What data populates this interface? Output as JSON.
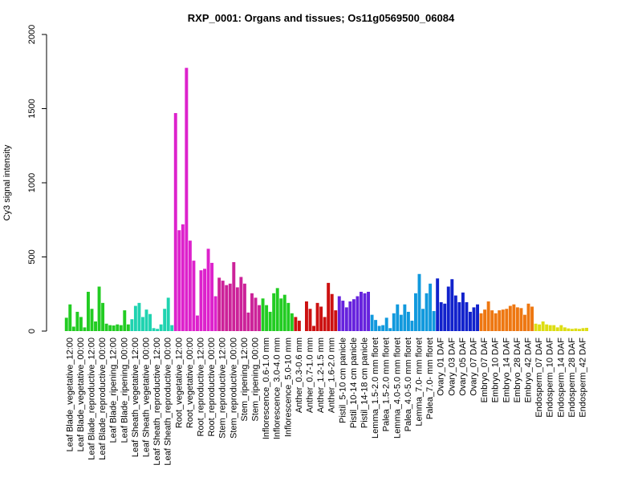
{
  "chart_data": {
    "type": "bar",
    "title": "RXP_0001: Organs and tissues; Os11g0569500_06084",
    "xlabel": "",
    "ylabel": "Cy3 signal intensity",
    "ylim": [
      0,
      2000
    ],
    "yticks": [
      0,
      500,
      1000,
      1500,
      2000
    ],
    "grid": false,
    "legend": "none",
    "groups": [
      {
        "label": "Leaf Blade_vegetative_12:00",
        "color": "#22cc22",
        "values": [
          90,
          180,
          30
        ]
      },
      {
        "label": "Leaf Blade_vegetative_00:00",
        "color": "#22cc22",
        "values": [
          130,
          95,
          25
        ]
      },
      {
        "label": "Leaf Blade_reproductive_12:00",
        "color": "#22cc22",
        "values": [
          265,
          150,
          65
        ]
      },
      {
        "label": "Leaf Blade_reproductive_00:00",
        "color": "#22cc22",
        "values": [
          300,
          190,
          50
        ]
      },
      {
        "label": "Leaf Blade_ripening_12:00",
        "color": "#22cc22",
        "values": [
          40,
          38,
          45
        ]
      },
      {
        "label": "Leaf Blade_ripening_00:00",
        "color": "#22cc22",
        "values": [
          40,
          140,
          45
        ]
      },
      {
        "label": "Leaf Sheath_vegetative_12:00",
        "color": "#1fd3b0",
        "values": [
          80,
          170,
          190
        ]
      },
      {
        "label": "Leaf Sheath_vegetative_00:00",
        "color": "#1fd3b0",
        "values": [
          95,
          145,
          115
        ]
      },
      {
        "label": "Leaf Sheath_reproductive_12:00",
        "color": "#1fd3b0",
        "values": [
          20,
          15,
          45
        ]
      },
      {
        "label": "Leaf Sheath_reproductive_00:00",
        "color": "#1fd3b0",
        "values": [
          150,
          225,
          40
        ]
      },
      {
        "label": "Root_vegetative_12:00",
        "color": "#dd22cc",
        "values": [
          1470,
          680,
          720
        ]
      },
      {
        "label": "Root_vegetative_00:00",
        "color": "#dd22cc",
        "values": [
          1775,
          610,
          475
        ]
      },
      {
        "label": "Root_reproductive_12:00",
        "color": "#dd22cc",
        "values": [
          105,
          410,
          420
        ]
      },
      {
        "label": "Root_reproductive_00:00",
        "color": "#dd22cc",
        "values": [
          555,
          460,
          235
        ]
      },
      {
        "label": "Stem_reproductive_12:00",
        "color": "#cc2299",
        "values": [
          360,
          340,
          310
        ]
      },
      {
        "label": "Stem_reproductive_00:00",
        "color": "#cc2299",
        "values": [
          320,
          465,
          295
        ]
      },
      {
        "label": "Stem_ripening_12:00",
        "color": "#cc2299",
        "values": [
          365,
          320,
          125
        ]
      },
      {
        "label": "Stem_ripening_00:00",
        "color": "#cc2299",
        "values": [
          255,
          225,
          175
        ]
      },
      {
        "label": "Inflorescence_0.6-1.0 mm",
        "color": "#22cc22",
        "values": [
          220,
          175,
          130
        ]
      },
      {
        "label": "Inflorescence_3.0-4.0 mm",
        "color": "#22cc22",
        "values": [
          255,
          290,
          220
        ]
      },
      {
        "label": "Inflorescence_5.0-10 mm",
        "color": "#22cc22",
        "values": [
          245,
          190,
          120
        ]
      },
      {
        "label": "Anther_0.3-0.6 mm",
        "color": "#cc1111",
        "values": [
          95,
          70
        ]
      },
      {
        "label": "Anther_0.7-1.0 mm",
        "color": "#cc1111",
        "values": [
          200,
          150,
          35
        ]
      },
      {
        "label": "Anther_1.2-1.5 mm",
        "color": "#cc1111",
        "values": [
          190,
          165,
          95
        ]
      },
      {
        "label": "Anther_1.6-2.0 mm",
        "color": "#cc1111",
        "values": [
          325,
          250,
          140
        ]
      },
      {
        "label": "Pistil_5-10 cm panicle",
        "color": "#6622dd",
        "values": [
          235,
          205,
          160
        ]
      },
      {
        "label": "Pistil_10-14 cm panicle",
        "color": "#6622dd",
        "values": [
          200,
          215,
          235
        ]
      },
      {
        "label": "Pistil_14-18 cm panicle",
        "color": "#6622dd",
        "values": [
          265,
          255,
          265
        ]
      },
      {
        "label": "Lemma_1.5-2.0 mm floret",
        "color": "#1199dd",
        "values": [
          110,
          75,
          35
        ]
      },
      {
        "label": "Palea_1.5-2.0 mm floret",
        "color": "#1199dd",
        "values": [
          40,
          90,
          20
        ]
      },
      {
        "label": "Lemma_4.0-5.0 mm floret",
        "color": "#1199dd",
        "values": [
          120,
          180,
          110
        ]
      },
      {
        "label": "Palea_4.0-5.0 mm floret",
        "color": "#1199dd",
        "values": [
          180,
          130,
          70
        ]
      },
      {
        "label": "Lemma_7.0- mm floret",
        "color": "#1199dd",
        "values": [
          255,
          385,
          150
        ]
      },
      {
        "label": "Palea_7.0- mm floret",
        "color": "#1199dd",
        "values": [
          255,
          320,
          135
        ]
      },
      {
        "label": "Ovary_01 DAF",
        "color": "#1122cc",
        "values": [
          355,
          195,
          185
        ]
      },
      {
        "label": "Ovary_03 DAF",
        "color": "#1122cc",
        "values": [
          300,
          350,
          240
        ]
      },
      {
        "label": "Ovary_05 DAF",
        "color": "#1122cc",
        "values": [
          195,
          260,
          195
        ]
      },
      {
        "label": "Ovary_07 DAF",
        "color": "#1122cc",
        "values": [
          130,
          160,
          180
        ]
      },
      {
        "label": "Embryo_07 DAF",
        "color": "#ee7711",
        "values": [
          120,
          145,
          200
        ]
      },
      {
        "label": "Embryo_10 DAF",
        "color": "#ee7711",
        "values": [
          140,
          120,
          140
        ]
      },
      {
        "label": "Embryo_14 DAF",
        "color": "#ee7711",
        "values": [
          145,
          150,
          170
        ]
      },
      {
        "label": "Embryo_28 DAF",
        "color": "#ee7711",
        "values": [
          180,
          160,
          155
        ]
      },
      {
        "label": "Embryo_42 DAF",
        "color": "#ee7711",
        "values": [
          110,
          185,
          165
        ]
      },
      {
        "label": "Endosperm_07 DAF",
        "color": "#dddd11",
        "values": [
          50,
          45,
          65
        ]
      },
      {
        "label": "Endosperm_10 DAF",
        "color": "#dddd11",
        "values": [
          45,
          40,
          40
        ]
      },
      {
        "label": "Endosperm_14 DAF",
        "color": "#dddd11",
        "values": [
          25,
          40,
          25
        ]
      },
      {
        "label": "Endosperm_28 DAF",
        "color": "#dddd11",
        "values": [
          18,
          15,
          18
        ]
      },
      {
        "label": "Endosperm_42 DAF",
        "color": "#dddd11",
        "values": [
          15,
          20,
          22
        ]
      }
    ]
  }
}
